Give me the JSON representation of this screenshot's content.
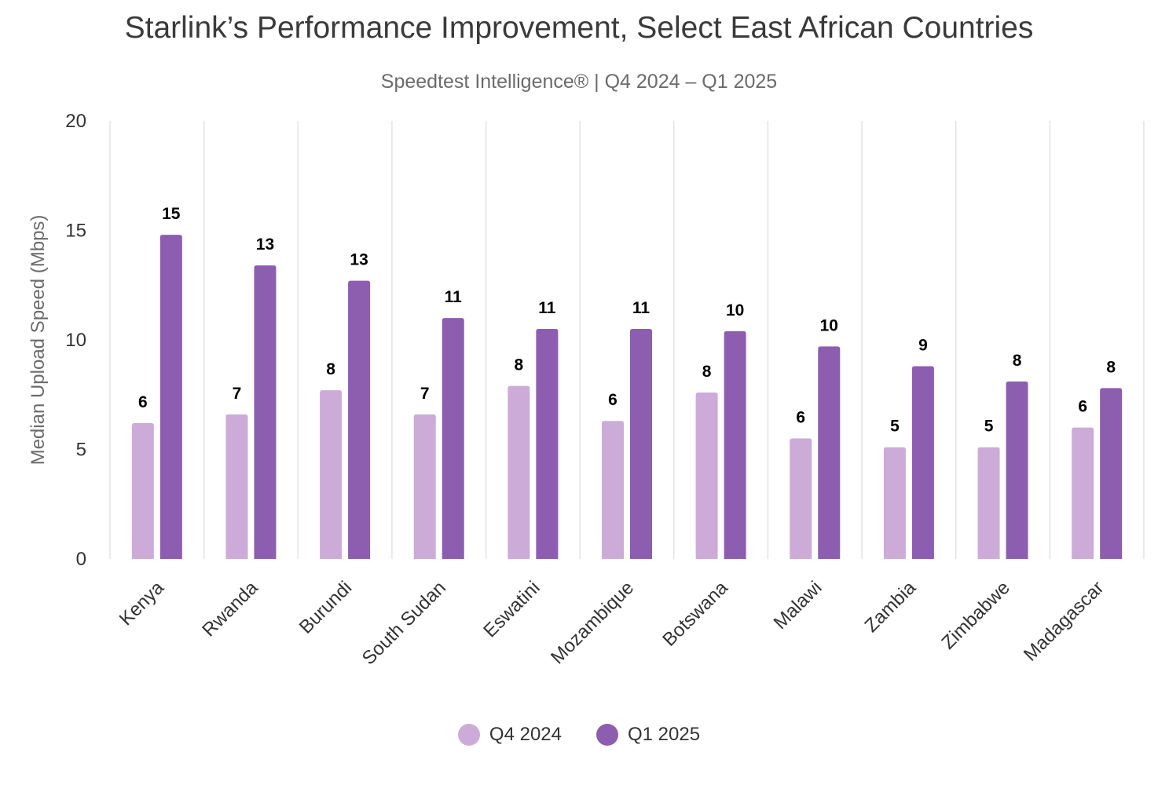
{
  "chart_data": {
    "type": "bar",
    "title": "Starlink’s Performance Improvement, Select East African Countries",
    "subtitle": "Speedtest Intelligence® | Q4 2024 – Q1 2025",
    "ylabel": "Median Upload Speed (Mbps)",
    "xlabel": "",
    "ylim": [
      0,
      20
    ],
    "yticks": [
      0,
      5,
      10,
      15,
      20
    ],
    "grid": "vertical category separators",
    "legend_position": "bottom-center",
    "categories": [
      "Kenya",
      "Rwanda",
      "Burundi",
      "South Sudan",
      "Eswatini",
      "Mozambique",
      "Botswana",
      "Malawi",
      "Zambia",
      "Zimbabwe",
      "Madagascar"
    ],
    "series": [
      {
        "name": "Q4 2024",
        "color": "#cdabd8",
        "values": [
          6.2,
          6.6,
          7.7,
          6.6,
          7.9,
          6.3,
          7.6,
          5.5,
          5.1,
          5.1,
          6.0
        ],
        "labels": [
          "6",
          "7",
          "8",
          "7",
          "8",
          "6",
          "8",
          "6",
          "5",
          "5",
          "6"
        ]
      },
      {
        "name": "Q1 2025",
        "color": "#8d5db0",
        "values": [
          14.8,
          13.4,
          12.7,
          11.0,
          10.5,
          10.5,
          10.4,
          9.7,
          8.8,
          8.1,
          7.8
        ],
        "labels": [
          "15",
          "13",
          "13",
          "11",
          "11",
          "11",
          "10",
          "10",
          "9",
          "8",
          "8"
        ]
      }
    ]
  }
}
